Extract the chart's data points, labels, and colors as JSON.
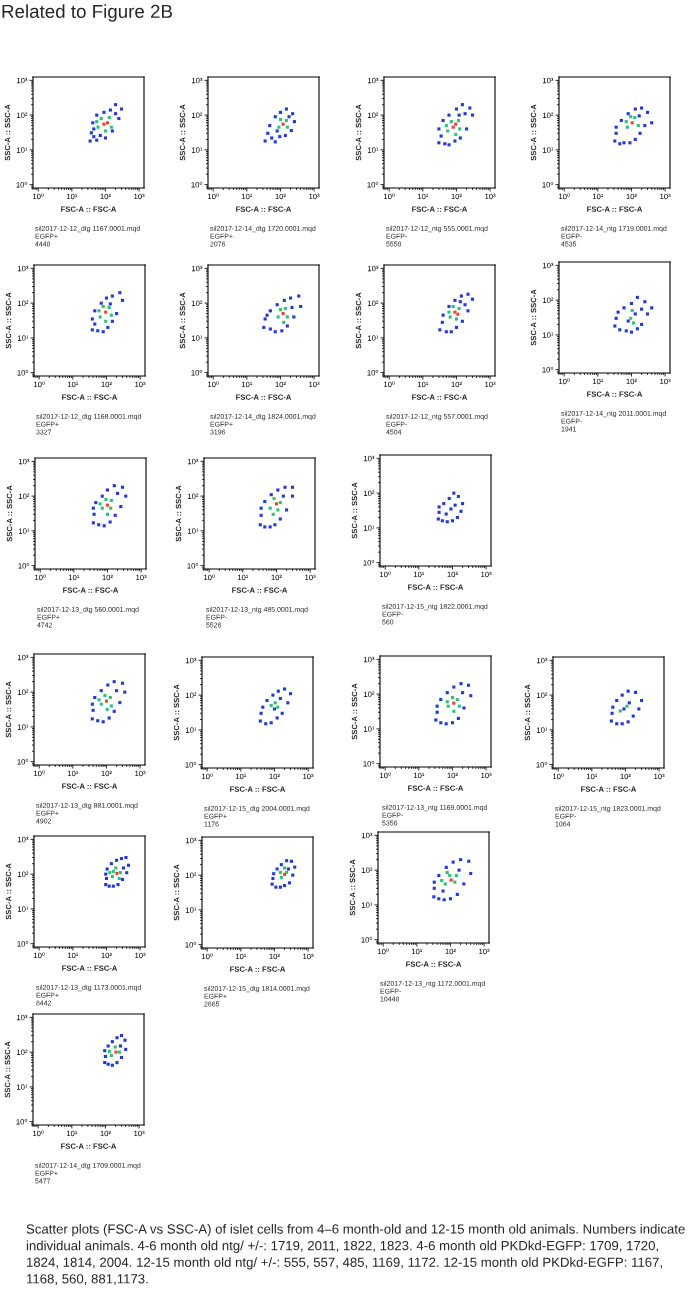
{
  "chart_data": [
    {
      "type": "other",
      "title": "Related to Figure 2B"
    },
    {
      "type": "scatter",
      "xlabel": "FSC-A :: FSC-A",
      "ylabel": "SSC-A :: SSC-A",
      "log": "xy",
      "xlim": [
        0.7,
        1400
      ],
      "ylim": [
        0.8,
        1250
      ],
      "xticks": [
        {
          "value": 1,
          "label": "10⁰"
        },
        {
          "value": 10,
          "label": "10¹"
        },
        {
          "value": 100,
          "label": "10²"
        },
        {
          "value": 1000,
          "label": "10³"
        }
      ],
      "yticks": [
        {
          "value": 1,
          "label": "10⁰"
        },
        {
          "value": 10,
          "label": "10¹"
        },
        {
          "value": 100,
          "label": "10²"
        },
        {
          "value": 1000,
          "label": "10³"
        }
      ],
      "marker": "square",
      "annotations": [
        "sil2017-12-12_dtg 1167.0001.mqd",
        "EGFP+",
        "4448"
      ],
      "series": [
        {
          "color": "#2438d8",
          "x": [
            35,
            45,
            38,
            55,
            70,
            100,
            160,
            250,
            300,
            200,
            140,
            90,
            55,
            42,
            45,
            200
          ],
          "values": [
            18,
            24,
            31,
            19,
            26,
            22,
            35,
            80,
            150,
            200,
            140,
            120,
            100,
            60,
            40,
            110
          ]
        },
        {
          "color": "#2fc07a",
          "x": [
            60,
            75,
            130,
            150,
            100,
            55
          ],
          "values": [
            45,
            80,
            85,
            45,
            35,
            65
          ]
        },
        {
          "color": "#e8452c",
          "x": [
            90,
            115
          ],
          "values": [
            55,
            60
          ]
        }
      ]
    },
    {
      "type": "scatter",
      "xlabel": "FSC-A :: FSC-A",
      "ylabel": "SSC-A :: SSC-A",
      "log": "xy",
      "xlim": [
        0.7,
        1400
      ],
      "ylim": [
        0.8,
        1250
      ],
      "xticks": [
        {
          "value": 1,
          "label": "10⁰"
        },
        {
          "value": 10,
          "label": "10¹"
        },
        {
          "value": 100,
          "label": "10²"
        },
        {
          "value": 1000,
          "label": "10³"
        }
      ],
      "yticks": [
        {
          "value": 1,
          "label": "10⁰"
        },
        {
          "value": 10,
          "label": "10¹"
        },
        {
          "value": 100,
          "label": "10²"
        },
        {
          "value": 1000,
          "label": "10³"
        }
      ],
      "marker": "square",
      "annotations": [
        "sil2017-12-14_dtg 1720.0001.mqd",
        "EGFP+",
        "2076"
      ],
      "series": [
        {
          "color": "#2438d8",
          "x": [
            35,
            42,
            55,
            70,
            95,
            140,
            210,
            260,
            230,
            150,
            100,
            70,
            48,
            80,
            180
          ],
          "values": [
            18,
            30,
            22,
            17,
            24,
            26,
            36,
            65,
            110,
            150,
            120,
            90,
            50,
            35,
            90
          ]
        },
        {
          "color": "#2fc07a",
          "x": [
            90,
            150,
            100,
            160
          ],
          "values": [
            45,
            70,
            75,
            45
          ]
        },
        {
          "color": "#e8452c",
          "x": [
            120
          ],
          "values": [
            55
          ]
        }
      ]
    },
    {
      "type": "scatter",
      "xlabel": "FSC-A :: FSC-A",
      "ylabel": "SSC-A :: SSC-A",
      "log": "xy",
      "xlim": [
        0.7,
        1400
      ],
      "ylim": [
        0.8,
        1250
      ],
      "xticks": [
        {
          "value": 1,
          "label": "10⁰"
        },
        {
          "value": 10,
          "label": "10¹"
        },
        {
          "value": 100,
          "label": "10²"
        },
        {
          "value": 1000,
          "label": "10³"
        }
      ],
      "yticks": [
        {
          "value": 1,
          "label": "10⁰"
        },
        {
          "value": 10,
          "label": "10¹"
        },
        {
          "value": 100,
          "label": "10²"
        },
        {
          "value": 1000,
          "label": "10³"
        }
      ],
      "marker": "square",
      "annotations": [
        "sil2017-12-12_ntg 555.0001.mqd",
        "EGFP-",
        "5558"
      ],
      "series": [
        {
          "color": "#2438d8",
          "x": [
            30,
            35,
            45,
            60,
            90,
            130,
            200,
            300,
            250,
            150,
            100,
            60,
            40,
            30,
            180,
            120
          ],
          "values": [
            16,
            25,
            15,
            14,
            18,
            22,
            40,
            100,
            160,
            200,
            150,
            100,
            70,
            40,
            110,
            100
          ]
        },
        {
          "color": "#2fc07a",
          "x": [
            55,
            70,
            115,
            125,
            95,
            50
          ],
          "values": [
            35,
            65,
            70,
            40,
            28,
            50
          ]
        },
        {
          "color": "#e8452c",
          "x": [
            80,
            95
          ],
          "values": [
            45,
            55
          ]
        }
      ]
    },
    {
      "type": "scatter",
      "xlabel": "FSC-A :: FSC-A",
      "ylabel": "SSC-A :: SSC-A",
      "log": "xy",
      "xlim": [
        0.7,
        1400
      ],
      "ylim": [
        0.8,
        1250
      ],
      "xticks": [
        {
          "value": 1,
          "label": "10⁰"
        },
        {
          "value": 10,
          "label": "10¹"
        },
        {
          "value": 100,
          "label": "10²"
        },
        {
          "value": 1000,
          "label": "10³"
        }
      ],
      "yticks": [
        {
          "value": 1,
          "label": "10⁰"
        },
        {
          "value": 10,
          "label": "10¹"
        },
        {
          "value": 100,
          "label": "10²"
        },
        {
          "value": 1000,
          "label": "10³"
        }
      ],
      "marker": "square",
      "annotations": [
        "sil2017-12-14_ntg 1719.0001.mqd",
        "EGFP-",
        "4535"
      ],
      "series": [
        {
          "color": "#2438d8",
          "x": [
            32,
            35,
            45,
            60,
            90,
            130,
            180,
            250,
            400,
            300,
            200,
            130,
            80,
            50,
            35,
            170
          ],
          "values": [
            18,
            30,
            15,
            16,
            16,
            20,
            30,
            50,
            60,
            120,
            160,
            150,
            110,
            70,
            45,
            95
          ]
        },
        {
          "color": "#2fc07a",
          "x": [
            75,
            125,
            160,
            95,
            70
          ],
          "values": [
            45,
            85,
            50,
            90,
            65
          ]
        },
        {
          "color": "#e8452c",
          "x": [
            105
          ],
          "values": [
            60
          ]
        }
      ]
    },
    {
      "type": "scatter",
      "xlabel": "FSC-A :: FSC-A",
      "ylabel": "SSC-A :: SSC-A",
      "log": "xy",
      "xlim": [
        0.7,
        1400
      ],
      "ylim": [
        0.8,
        1250
      ],
      "xticks": [
        {
          "value": 1,
          "label": "10⁰"
        },
        {
          "value": 10,
          "label": "10¹"
        },
        {
          "value": 100,
          "label": "10²"
        },
        {
          "value": 1000,
          "label": "10³"
        }
      ],
      "yticks": [
        {
          "value": 1,
          "label": "10⁰"
        },
        {
          "value": 10,
          "label": "10¹"
        },
        {
          "value": 100,
          "label": "10²"
        },
        {
          "value": 1000,
          "label": "10³"
        }
      ],
      "marker": "square",
      "annotations": [
        "sil2017-12-12_dtg 1168.0001.mqd",
        "EGFP+",
        "3327"
      ],
      "series": [
        {
          "color": "#2438d8",
          "x": [
            38,
            45,
            55,
            80,
            110,
            150,
            200,
            300,
            250,
            150,
            100,
            70,
            45,
            38,
            130
          ],
          "values": [
            17,
            25,
            16,
            15,
            20,
            30,
            50,
            120,
            200,
            160,
            140,
            100,
            60,
            35,
            95
          ]
        },
        {
          "color": "#2fc07a",
          "x": [
            65,
            80,
            120,
            140,
            95,
            60
          ],
          "values": [
            40,
            80,
            75,
            45,
            30,
            60
          ]
        },
        {
          "color": "#e8452c",
          "x": [
            95
          ],
          "values": [
            55
          ]
        }
      ]
    },
    {
      "type": "scatter",
      "xlabel": "FSC-A :: FSC-A",
      "ylabel": "SSC-A :: SSC-A",
      "log": "xy",
      "xlim": [
        0.7,
        1400
      ],
      "ylim": [
        0.8,
        1250
      ],
      "xticks": [
        {
          "value": 1,
          "label": "10⁰"
        },
        {
          "value": 10,
          "label": "10¹"
        },
        {
          "value": 100,
          "label": "10²"
        },
        {
          "value": 1000,
          "label": "10³"
        }
      ],
      "yticks": [
        {
          "value": 1,
          "label": "10⁰"
        },
        {
          "value": 10,
          "label": "10¹"
        },
        {
          "value": 100,
          "label": "10²"
        },
        {
          "value": 1000,
          "label": "10³"
        }
      ],
      "marker": "square",
      "annotations": [
        "sil2017-12-14_dtg 1824.0001.mqd",
        "EGFP+",
        "3196"
      ],
      "series": [
        {
          "color": "#2438d8",
          "x": [
            32,
            35,
            50,
            70,
            110,
            160,
            250,
            400,
            350,
            200,
            130,
            80,
            50,
            40,
            220
          ],
          "values": [
            20,
            35,
            18,
            15,
            16,
            22,
            40,
            80,
            160,
            140,
            120,
            90,
            60,
            45,
            75
          ]
        },
        {
          "color": "#2fc07a",
          "x": [
            85,
            140,
            160,
            100,
            125
          ],
          "values": [
            40,
            70,
            40,
            65,
            28
          ]
        },
        {
          "color": "#e8452c",
          "x": [
            120
          ],
          "values": [
            50
          ]
        }
      ]
    },
    {
      "type": "scatter",
      "xlabel": "FSC-A :: FSC-A",
      "ylabel": "SSC-A :: SSC-A",
      "log": "xy",
      "xlim": [
        0.7,
        1400
      ],
      "ylim": [
        0.8,
        1250
      ],
      "xticks": [
        {
          "value": 1,
          "label": "10⁰"
        },
        {
          "value": 10,
          "label": "10¹"
        },
        {
          "value": 100,
          "label": "10²"
        },
        {
          "value": 1000,
          "label": "10³"
        }
      ],
      "yticks": [
        {
          "value": 1,
          "label": "10⁰"
        },
        {
          "value": 10,
          "label": "10¹"
        },
        {
          "value": 100,
          "label": "10²"
        },
        {
          "value": 1000,
          "label": "10³"
        }
      ],
      "marker": "square",
      "annotations": [
        "sil2017-12-12_ntg 557.0001.mqd",
        "EGFP-",
        "4504"
      ],
      "series": [
        {
          "color": "#2438d8",
          "x": [
            32,
            38,
            50,
            70,
            100,
            150,
            220,
            300,
            220,
            140,
            90,
            60,
            40,
            130,
            180
          ],
          "values": [
            17,
            28,
            15,
            15,
            20,
            30,
            60,
            130,
            180,
            160,
            120,
            80,
            45,
            110,
            90
          ]
        },
        {
          "color": "#2fc07a",
          "x": [
            65,
            80,
            120,
            60,
            100
          ],
          "values": [
            40,
            80,
            70,
            55,
            35
          ]
        },
        {
          "color": "#e8452c",
          "x": [
            90,
            110
          ],
          "values": [
            55,
            48
          ]
        }
      ]
    },
    {
      "type": "scatter",
      "xlabel": "FSC-A :: FSC-A",
      "ylabel": "SSC-A :: SSC-A",
      "log": "xy",
      "xlim": [
        0.7,
        1400
      ],
      "ylim": [
        0.8,
        1250
      ],
      "xticks": [
        {
          "value": 1,
          "label": "10⁰"
        },
        {
          "value": 10,
          "label": "10¹"
        },
        {
          "value": 100,
          "label": "10²"
        },
        {
          "value": 1000,
          "label": "10³"
        }
      ],
      "yticks": [
        {
          "value": 1,
          "label": "10⁰"
        },
        {
          "value": 10,
          "label": "10¹"
        },
        {
          "value": 100,
          "label": "10²"
        },
        {
          "value": 1000,
          "label": "10³"
        }
      ],
      "marker": "square",
      "annotations": [
        "sil2017-12-14_ntg 2011.0001.mqd",
        "EGFP-",
        "1941"
      ],
      "series": [
        {
          "color": "#2438d8",
          "x": [
            32,
            35,
            45,
            70,
            100,
            150,
            200,
            300,
            400,
            250,
            150,
            100,
            60,
            40,
            80,
            130,
            200
          ],
          "values": [
            18,
            30,
            14,
            13,
            12,
            15,
            20,
            40,
            60,
            90,
            120,
            80,
            60,
            45,
            25,
            40,
            55
          ]
        },
        {
          "color": "#2fc07a",
          "x": [
            95,
            115,
            105
          ],
          "values": [
            30,
            22,
            50
          ]
        }
      ]
    },
    {
      "type": "scatter",
      "xlabel": "FSC-A :: FSC-A",
      "ylabel": "SSC-A :: SSC-A",
      "log": "xy",
      "xlim": [
        0.7,
        1400
      ],
      "ylim": [
        0.8,
        1250
      ],
      "xticks": [
        {
          "value": 1,
          "label": "10⁰"
        },
        {
          "value": 10,
          "label": "10¹"
        },
        {
          "value": 100,
          "label": "10²"
        },
        {
          "value": 1000,
          "label": "10³"
        }
      ],
      "yticks": [
        {
          "value": 1,
          "label": "10⁰"
        },
        {
          "value": 10,
          "label": "10¹"
        },
        {
          "value": 100,
          "label": "10²"
        },
        {
          "value": 1000,
          "label": "10³"
        }
      ],
      "marker": "square",
      "annotations": [
        "sil2017-12-13_dtg 560.0001.mqd",
        "EGFP+",
        "4742"
      ],
      "series": [
        {
          "color": "#2438d8",
          "x": [
            38,
            40,
            55,
            80,
            120,
            170,
            250,
            350,
            280,
            160,
            100,
            70,
            45,
            38,
            200
          ],
          "values": [
            17,
            30,
            15,
            14,
            18,
            28,
            50,
            100,
            180,
            200,
            150,
            100,
            65,
            45,
            120
          ]
        },
        {
          "color": "#2fc07a",
          "x": [
            70,
            90,
            130,
            60,
            125,
            100
          ],
          "values": [
            45,
            80,
            75,
            60,
            45,
            30
          ]
        },
        {
          "color": "#e8452c",
          "x": [
            100
          ],
          "values": [
            55
          ]
        }
      ]
    },
    {
      "type": "scatter",
      "xlabel": "FSC-A :: FSC-A",
      "ylabel": "SSC-A :: SSC-A",
      "log": "xy",
      "xlim": [
        0.7,
        1400
      ],
      "ylim": [
        0.8,
        1250
      ],
      "xticks": [
        {
          "value": 1,
          "label": "10⁰"
        },
        {
          "value": 10,
          "label": "10¹"
        },
        {
          "value": 100,
          "label": "10²"
        },
        {
          "value": 1000,
          "label": "10³"
        }
      ],
      "yticks": [
        {
          "value": 1,
          "label": "10⁰"
        },
        {
          "value": 10,
          "label": "10¹"
        },
        {
          "value": 100,
          "label": "10²"
        },
        {
          "value": 1000,
          "label": "10³"
        }
      ],
      "marker": "square",
      "annotations": [
        "sil2017-12-13_ntg 485.0001.mqd",
        "EGFP-",
        "5526"
      ],
      "series": [
        {
          "color": "#2438d8",
          "x": [
            33,
            35,
            45,
            65,
            90,
            130,
            200,
            300,
            300,
            180,
            110,
            70,
            45,
            35,
            160
          ],
          "values": [
            15,
            28,
            13,
            13,
            15,
            22,
            40,
            100,
            180,
            180,
            150,
            110,
            70,
            45,
            100
          ]
        },
        {
          "color": "#2fc07a",
          "x": [
            65,
            85,
            130,
            80,
            110
          ],
          "values": [
            45,
            85,
            65,
            30,
            40
          ]
        },
        {
          "color": "#e8452c",
          "x": [
            100
          ],
          "values": [
            60
          ]
        }
      ]
    },
    {
      "type": "scatter",
      "xlabel": "FSC-A :: FSC-A",
      "ylabel": "SSC-A :: SSC-A",
      "log": "xy",
      "xlim": [
        0.7,
        1400
      ],
      "ylim": [
        0.8,
        1250
      ],
      "xticks": [
        {
          "value": 1,
          "label": "10⁰"
        },
        {
          "value": 10,
          "label": "10¹"
        },
        {
          "value": 100,
          "label": "10²"
        },
        {
          "value": 1000,
          "label": "10³"
        }
      ],
      "yticks": [
        {
          "value": 1,
          "label": "10⁰"
        },
        {
          "value": 10,
          "label": "10¹"
        },
        {
          "value": 100,
          "label": "10²"
        },
        {
          "value": 1000,
          "label": "10³"
        }
      ],
      "marker": "square",
      "annotations": [
        "sil2017-12-15_ntg 1822.0001.mqd",
        "EGFP-",
        "560"
      ],
      "series": [
        {
          "color": "#2438d8",
          "x": [
            38,
            40,
            50,
            70,
            100,
            140,
            180,
            200,
            150,
            110,
            80,
            55,
            40,
            90,
            120,
            65
          ],
          "values": [
            18,
            28,
            16,
            15,
            16,
            20,
            30,
            50,
            80,
            100,
            70,
            50,
            40,
            35,
            45,
            25
          ]
        }
      ]
    },
    {
      "type": "scatter",
      "xlabel": "FSC-A :: FSC-A",
      "ylabel": "SSC-A :: SSC-A",
      "log": "xy",
      "xlim": [
        0.7,
        1400
      ],
      "ylim": [
        0.8,
        1250
      ],
      "xticks": [
        {
          "value": 1,
          "label": "10⁰"
        },
        {
          "value": 10,
          "label": "10¹"
        },
        {
          "value": 100,
          "label": "10²"
        },
        {
          "value": 1000,
          "label": "10³"
        }
      ],
      "yticks": [
        {
          "value": 1,
          "label": "10⁰"
        },
        {
          "value": 10,
          "label": "10¹"
        },
        {
          "value": 100,
          "label": "10²"
        },
        {
          "value": 1000,
          "label": "10³"
        }
      ],
      "marker": "square",
      "annotations": [
        "sil2017-12-13_dtg 881.0001.mqd",
        "EGFP+",
        "4902"
      ],
      "series": [
        {
          "color": "#2438d8",
          "x": [
            38,
            40,
            55,
            80,
            120,
            170,
            250,
            350,
            300,
            170,
            110,
            70,
            45,
            38,
            200
          ],
          "values": [
            17,
            30,
            15,
            14,
            18,
            28,
            50,
            100,
            180,
            200,
            160,
            110,
            70,
            45,
            110
          ]
        },
        {
          "color": "#2fc07a",
          "x": [
            70,
            90,
            130,
            60,
            140,
            105
          ],
          "values": [
            45,
            80,
            70,
            60,
            40,
            32
          ]
        },
        {
          "color": "#e8452c",
          "x": [
            100
          ],
          "values": [
            55
          ]
        }
      ]
    },
    {
      "type": "scatter",
      "xlabel": "FSC-A :: FSC-A",
      "ylabel": "SSC-A :: SSC-A",
      "log": "xy",
      "xlim": [
        0.7,
        1400
      ],
      "ylim": [
        0.8,
        1250
      ],
      "xticks": [
        {
          "value": 1,
          "label": "10⁰"
        },
        {
          "value": 10,
          "label": "10¹"
        },
        {
          "value": 100,
          "label": "10²"
        },
        {
          "value": 1000,
          "label": "10³"
        }
      ],
      "yticks": [
        {
          "value": 1,
          "label": "10⁰"
        },
        {
          "value": 10,
          "label": "10¹"
        },
        {
          "value": 100,
          "label": "10²"
        },
        {
          "value": 1000,
          "label": "10³"
        }
      ],
      "marker": "square",
      "annotations": [
        "sil2017-12-15_dtg 2004.0001.mqd",
        "EGFP+",
        "1176"
      ],
      "series": [
        {
          "color": "#2438d8",
          "x": [
            38,
            40,
            55,
            80,
            120,
            170,
            250,
            300,
            200,
            130,
            90,
            60,
            45,
            100,
            150
          ],
          "values": [
            18,
            30,
            15,
            16,
            22,
            30,
            60,
            110,
            150,
            130,
            100,
            70,
            45,
            40,
            80
          ]
        },
        {
          "color": "#2fc07a",
          "x": [
            105,
            125,
            80
          ],
          "values": [
            60,
            45,
            50
          ]
        }
      ]
    },
    {
      "type": "scatter",
      "xlabel": "FSC-A :: FSC-A",
      "ylabel": "SSC-A :: SSC-A",
      "log": "xy",
      "xlim": [
        0.7,
        1400
      ],
      "ylim": [
        0.8,
        1250
      ],
      "xticks": [
        {
          "value": 1,
          "label": "10⁰"
        },
        {
          "value": 10,
          "label": "10¹"
        },
        {
          "value": 100,
          "label": "10²"
        },
        {
          "value": 1000,
          "label": "10³"
        }
      ],
      "yticks": [
        {
          "value": 1,
          "label": "10⁰"
        },
        {
          "value": 10,
          "label": "10¹"
        },
        {
          "value": 100,
          "label": "10²"
        },
        {
          "value": 1000,
          "label": "10³"
        }
      ],
      "marker": "square",
      "annotations": [
        "sil2017-12-13_ntg 1169.0001.mqd",
        "EGFP-",
        "5356"
      ],
      "series": [
        {
          "color": "#2438d8",
          "x": [
            32,
            35,
            45,
            65,
            100,
            150,
            220,
            350,
            300,
            180,
            110,
            70,
            45,
            35,
            200
          ],
          "values": [
            18,
            30,
            15,
            14,
            15,
            20,
            40,
            90,
            180,
            200,
            160,
            110,
            70,
            45,
            110
          ]
        },
        {
          "color": "#2fc07a",
          "x": [
            75,
            100,
            140,
            70,
            160,
            110
          ],
          "values": [
            45,
            80,
            70,
            60,
            45,
            32
          ]
        },
        {
          "color": "#e8452c",
          "x": [
            110
          ],
          "values": [
            55
          ]
        }
      ]
    },
    {
      "type": "scatter",
      "xlabel": "FSC-A :: FSC-A",
      "ylabel": "SSC-A :: SSC-A",
      "log": "xy",
      "xlim": [
        0.7,
        1400
      ],
      "ylim": [
        0.8,
        1250
      ],
      "xticks": [
        {
          "value": 1,
          "label": "10⁰"
        },
        {
          "value": 10,
          "label": "10¹"
        },
        {
          "value": 100,
          "label": "10²"
        },
        {
          "value": 1000,
          "label": "10³"
        }
      ],
      "yticks": [
        {
          "value": 1,
          "label": "10⁰"
        },
        {
          "value": 10,
          "label": "10¹"
        },
        {
          "value": 100,
          "label": "10²"
        },
        {
          "value": 1000,
          "label": "10³"
        }
      ],
      "marker": "square",
      "annotations": [
        "sil2017-12-15_ntg 1823.0001.mqd",
        "EGFP-",
        "1064"
      ],
      "series": [
        {
          "color": "#2438d8",
          "x": [
            38,
            40,
            55,
            80,
            120,
            170,
            250,
            300,
            200,
            120,
            80,
            55,
            42,
            90,
            130
          ],
          "values": [
            18,
            30,
            15,
            15,
            17,
            25,
            40,
            70,
            120,
            130,
            100,
            70,
            45,
            40,
            60
          ]
        },
        {
          "color": "#2fc07a",
          "x": [
            70,
            110
          ],
          "values": [
            35,
            48
          ]
        }
      ]
    },
    {
      "type": "scatter",
      "xlabel": "FSC-A :: FSC-A",
      "ylabel": "SSC-A :: SSC-A",
      "log": "xy",
      "xlim": [
        0.7,
        1400
      ],
      "ylim": [
        0.8,
        1250
      ],
      "xticks": [
        {
          "value": 1,
          "label": "10⁰"
        },
        {
          "value": 10,
          "label": "10¹"
        },
        {
          "value": 100,
          "label": "10²"
        },
        {
          "value": 1000,
          "label": "10³"
        }
      ],
      "yticks": [
        {
          "value": 1,
          "label": "10⁰"
        },
        {
          "value": 10,
          "label": "10¹"
        },
        {
          "value": 100,
          "label": "10²"
        },
        {
          "value": 1000,
          "label": "10³"
        }
      ],
      "marker": "square",
      "annotations": [
        "sil2017-12-13_dtg 1173.0001.mqd",
        "EGFP+",
        "8442"
      ],
      "series": [
        {
          "color": "#2438d8",
          "x": [
            95,
            100,
            120,
            160,
            220,
            300,
            400,
            450,
            380,
            280,
            200,
            140,
            105,
            95,
            320
          ],
          "values": [
            50,
            75,
            45,
            45,
            50,
            70,
            110,
            180,
            300,
            280,
            250,
            200,
            140,
            100,
            150
          ]
        },
        {
          "color": "#2fc07a",
          "x": [
            150,
            190,
            260,
            160,
            240,
            125
          ],
          "values": [
            85,
            150,
            110,
            120,
            75,
            110
          ]
        },
        {
          "color": "#e8452c",
          "x": [
            205
          ],
          "values": [
            105
          ]
        }
      ]
    },
    {
      "type": "scatter",
      "xlabel": "FSC-A :: FSC-A",
      "ylabel": "SSC-A :: SSC-A",
      "log": "xy",
      "xlim": [
        0.7,
        1400
      ],
      "ylim": [
        0.8,
        1250
      ],
      "xticks": [
        {
          "value": 1,
          "label": "10⁰"
        },
        {
          "value": 10,
          "label": "10¹"
        },
        {
          "value": 100,
          "label": "10²"
        },
        {
          "value": 1000,
          "label": "10³"
        }
      ],
      "yticks": [
        {
          "value": 1,
          "label": "10⁰"
        },
        {
          "value": 10,
          "label": "10¹"
        },
        {
          "value": 100,
          "label": "10²"
        },
        {
          "value": 1000,
          "label": "10³"
        }
      ],
      "marker": "square",
      "annotations": [
        "sil2017-12-15_dtg 1814.0001.mqd",
        "EGFP+",
        "2665"
      ],
      "series": [
        {
          "color": "#2438d8",
          "x": [
            85,
            90,
            110,
            150,
            200,
            280,
            350,
            400,
            320,
            230,
            160,
            120,
            95,
            260
          ],
          "values": [
            55,
            80,
            45,
            45,
            50,
            60,
            100,
            170,
            250,
            260,
            200,
            150,
            110,
            150
          ]
        },
        {
          "color": "#2fc07a",
          "x": [
            160,
            230,
            200,
            150
          ],
          "values": [
            85,
            120,
            160,
            120
          ]
        },
        {
          "color": "#e8452c",
          "x": [
            200
          ],
          "values": [
            105
          ]
        }
      ]
    },
    {
      "type": "scatter",
      "xlabel": "FSC-A :: FSC-A",
      "ylabel": "SSC-A :: SSC-A",
      "log": "xy",
      "xlim": [
        0.7,
        1400
      ],
      "ylim": [
        0.8,
        1250
      ],
      "xticks": [
        {
          "value": 1,
          "label": "10⁰"
        },
        {
          "value": 10,
          "label": "10¹"
        },
        {
          "value": 100,
          "label": "10²"
        },
        {
          "value": 1000,
          "label": "10³"
        }
      ],
      "yticks": [
        {
          "value": 1,
          "label": "10⁰"
        },
        {
          "value": 10,
          "label": "10¹"
        },
        {
          "value": 100,
          "label": "10²"
        },
        {
          "value": 1000,
          "label": "10³"
        }
      ],
      "marker": "square",
      "annotations": [
        "sil2017-12-13_ntg 1172.0001.mqd",
        "EGFP-",
        "10448"
      ],
      "series": [
        {
          "color": "#2438d8",
          "x": [
            32,
            33,
            45,
            65,
            100,
            160,
            250,
            400,
            350,
            200,
            120,
            75,
            45,
            33,
            180,
            60
          ],
          "values": [
            17,
            30,
            15,
            14,
            15,
            20,
            40,
            80,
            180,
            200,
            170,
            120,
            70,
            45,
            100,
            25
          ]
        },
        {
          "color": "#2fc07a",
          "x": [
            70,
            95,
            135,
            80,
            150,
            55
          ],
          "values": [
            40,
            70,
            45,
            85,
            70,
            50
          ]
        },
        {
          "color": "#e8452c",
          "x": [
            105
          ],
          "values": [
            52
          ]
        }
      ]
    },
    {
      "type": "scatter",
      "xlabel": "FSC-A :: FSC-A",
      "ylabel": "SSC-A :: SSC-A",
      "log": "xy",
      "xlim": [
        0.7,
        1400
      ],
      "ylim": [
        0.8,
        1250
      ],
      "xticks": [
        {
          "value": 1,
          "label": "10⁰"
        },
        {
          "value": 10,
          "label": "10¹"
        },
        {
          "value": 100,
          "label": "10²"
        },
        {
          "value": 1000,
          "label": "10³"
        }
      ],
      "yticks": [
        {
          "value": 1,
          "label": "10⁰"
        },
        {
          "value": 10,
          "label": "10¹"
        },
        {
          "value": 100,
          "label": "10²"
        },
        {
          "value": 1000,
          "label": "10³"
        }
      ],
      "marker": "square",
      "annotations": [
        "sil2017-12-14_dtg 1709.0001.mqd",
        "EGFP+",
        "5477"
      ],
      "series": [
        {
          "color": "#2438d8",
          "x": [
            95,
            100,
            120,
            160,
            220,
            300,
            400,
            380,
            300,
            220,
            160,
            120,
            95,
            280
          ],
          "values": [
            50,
            75,
            45,
            42,
            50,
            70,
            120,
            220,
            300,
            260,
            200,
            150,
            110,
            150
          ]
        },
        {
          "color": "#2fc07a",
          "x": [
            150,
            195,
            260,
            130
          ],
          "values": [
            80,
            140,
            100,
            105
          ]
        },
        {
          "color": "#e8452c",
          "x": [
            205
          ],
          "values": [
            100
          ]
        }
      ]
    },
    {
      "type": "other",
      "annotations": [
        "Scatter plots (FSC-A vs SSC-A) of islet cells from 4–6 month-old and 12-15 month old animals. Numbers indicate individual animals. 4-6 month old ntg/ +/-: 1719, 2011, 1822, 1823. 4-6 month old PKDkd-EGFP: 1709, 1720, 1824, 1814, 2004. 12-15 month old ntg/ +/-: 555, 557, 485, 1169, 1172. 12-15 month old PKDkd-EGFP: 1167, 1168, 560, 881,1173."
      ]
    }
  ]
}
